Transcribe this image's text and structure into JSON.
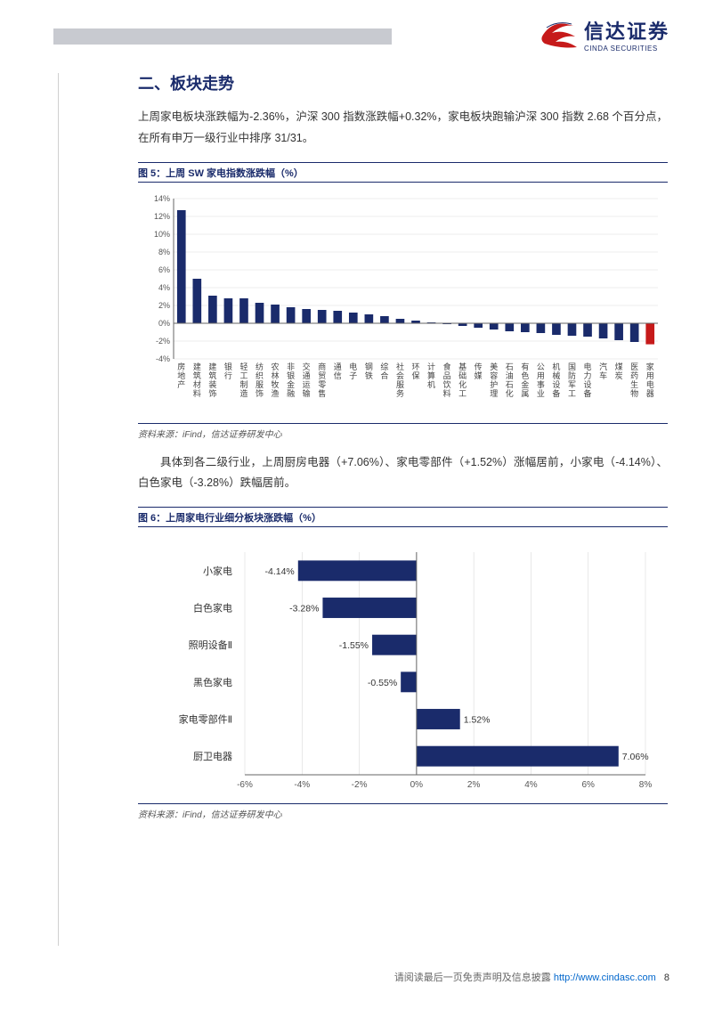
{
  "brand": {
    "name_cn": "信达证券",
    "name_en": "CINDA SECURITIES"
  },
  "section": {
    "title": "二、板块走势",
    "intro": "上周家电板块涨跌幅为-2.36%，沪深 300 指数涨跌幅+0.32%，家电板块跑输沪深 300 指数 2.68 个百分点，在所有申万一级行业中排序 31/31。"
  },
  "fig5": {
    "title": "图 5：上周 SW 家电指数涨跌幅（%）",
    "source": "资料来源：iFind，信达证券研发中心",
    "type": "bar",
    "ylim": [
      -4,
      14
    ],
    "ytick_step": 2,
    "ytick_suffix": "%",
    "background_color": "#ffffff",
    "grid_color": "#d9d9d9",
    "axis_color": "#666666",
    "label_fontsize": 9,
    "bar_color_default": "#1a2b6b",
    "bar_color_highlight": "#c61a1a",
    "bar_width": 0.55,
    "categories": [
      "房地产",
      "建筑材料",
      "建筑装饰",
      "银行",
      "轻工制造",
      "纺织服饰",
      "农林牧渔",
      "非银金融",
      "交通运输",
      "商贸零售",
      "通信",
      "电子",
      "钢铁",
      "综合",
      "社会服务",
      "环保",
      "计算机",
      "食品饮料",
      "基础化工",
      "传媒",
      "美容护理",
      "石油石化",
      "有色金属",
      "公用事业",
      "机械设备",
      "国防军工",
      "电力设备",
      "汽车",
      "煤炭",
      "医药生物",
      "家用电器"
    ],
    "values": [
      12.7,
      5.0,
      3.1,
      2.8,
      2.8,
      2.3,
      2.1,
      1.8,
      1.6,
      1.5,
      1.4,
      1.2,
      1.0,
      0.8,
      0.5,
      0.3,
      0.1,
      -0.1,
      -0.3,
      -0.5,
      -0.7,
      -0.9,
      -1.0,
      -1.1,
      -1.3,
      -1.4,
      -1.5,
      -1.7,
      -1.9,
      -2.1,
      -2.36
    ],
    "highlight_index": 30
  },
  "para2": "具体到各二级行业，上周厨房电器（+7.06%）、家电零部件（+1.52%）涨幅居前，小家电（-4.14%）、白色家电（-3.28%）跌幅居前。",
  "fig6": {
    "title": "图 6：上周家电行业细分板块涨跌幅（%）",
    "source": "资料来源：iFind，信达证券研发中心",
    "type": "bar-horizontal",
    "xlim": [
      -6,
      8
    ],
    "xtick_step": 2,
    "xtick_suffix": "%",
    "background_color": "#ffffff",
    "grid_color": "#d9d9d9",
    "axis_color": "#666666",
    "label_fontsize": 11,
    "bar_color": "#1a2b6b",
    "bar_height": 0.55,
    "categories": [
      "小家电",
      "白色家电",
      "照明设备Ⅱ",
      "黑色家电",
      "家电零部件Ⅱ",
      "厨卫电器"
    ],
    "values": [
      -4.14,
      -3.28,
      -1.55,
      -0.55,
      1.52,
      7.06
    ],
    "value_labels": [
      "-4.14%",
      "-3.28%",
      "-1.55%",
      "-0.55%",
      "1.52%",
      "7.06%"
    ]
  },
  "footer": {
    "text": "请阅读最后一页免责声明及信息披露 ",
    "link_text": "http://www.cindasc.com",
    "page": "8"
  }
}
